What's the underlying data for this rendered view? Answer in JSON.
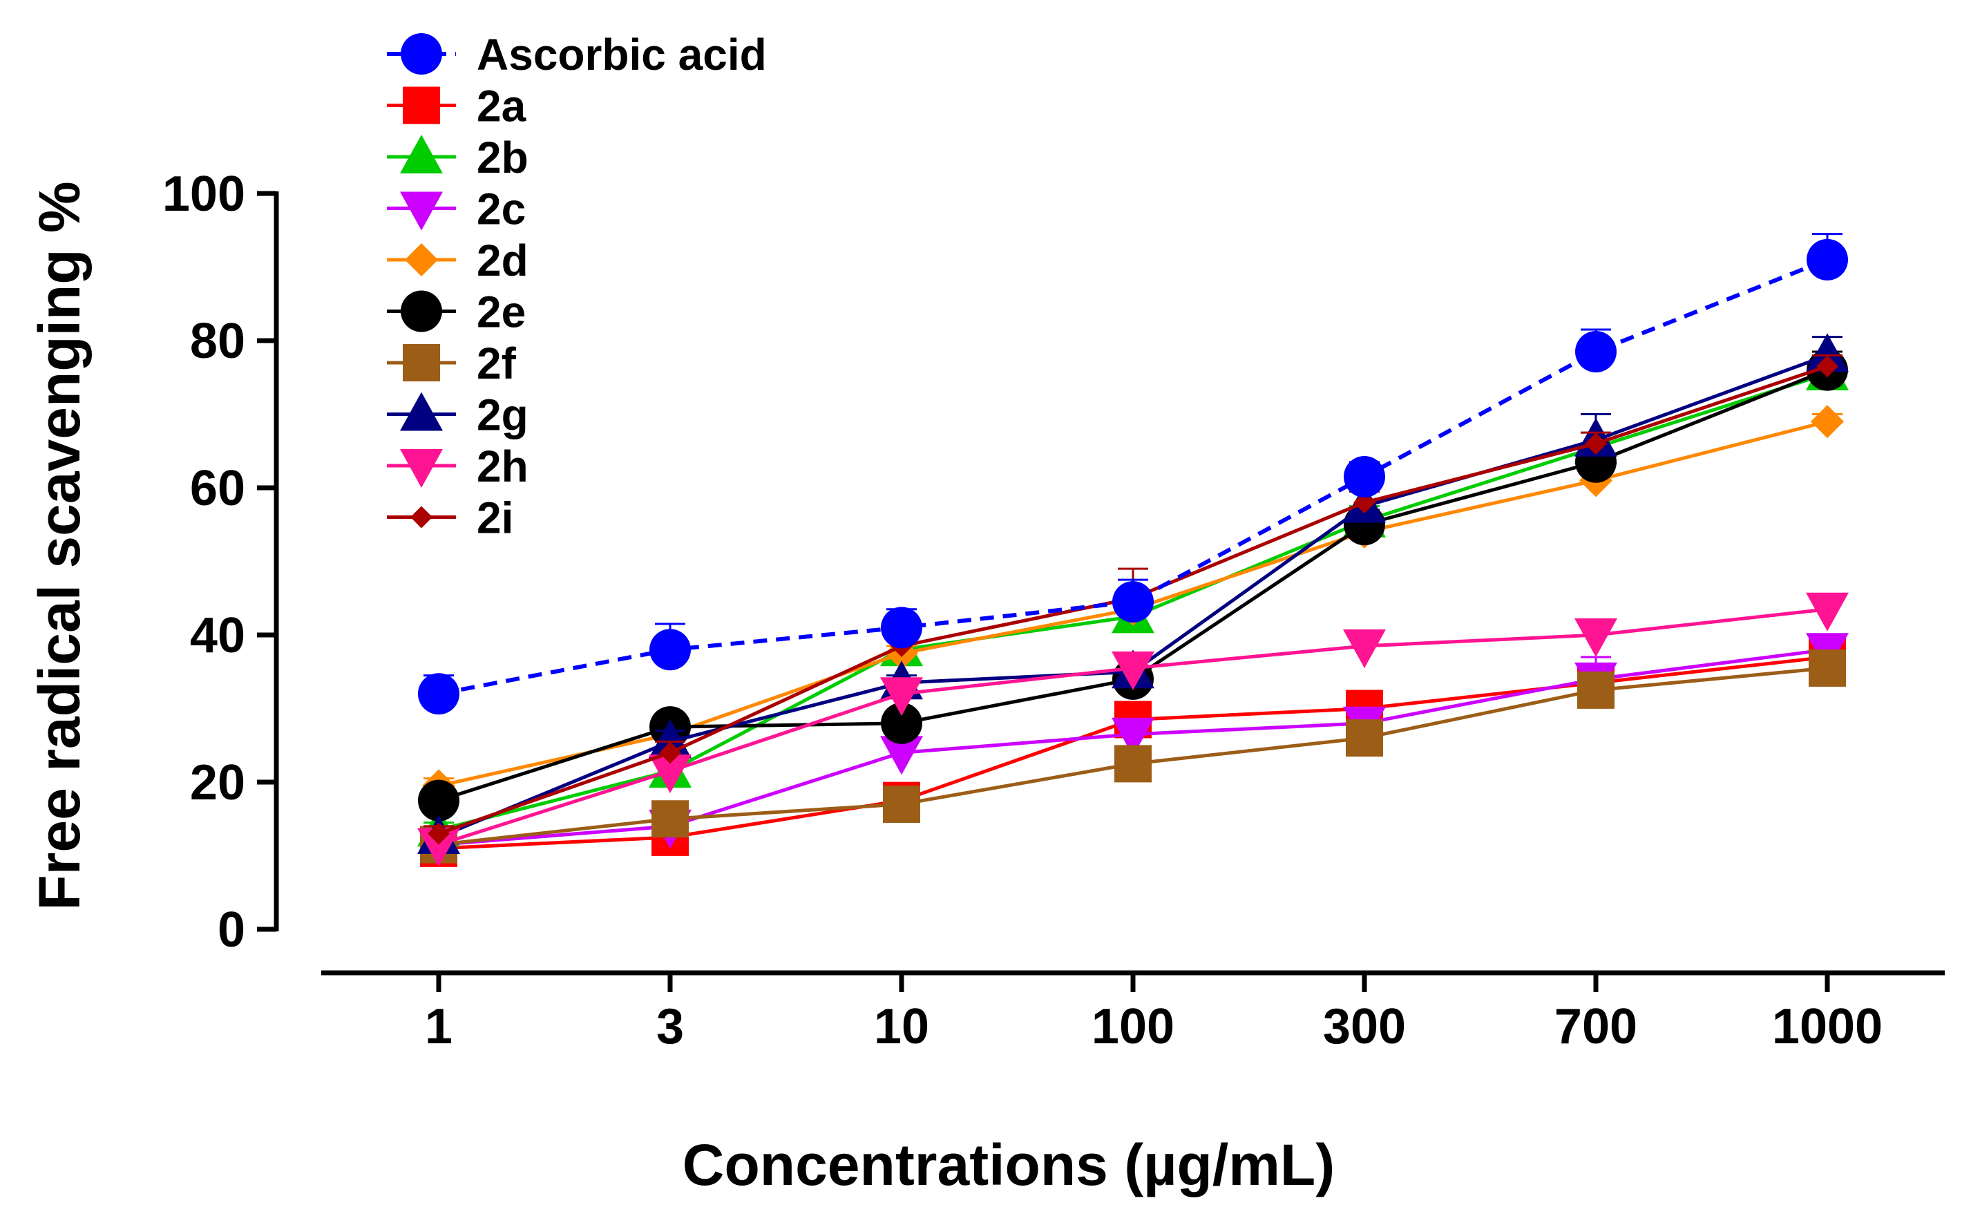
{
  "chart_data": {
    "type": "line",
    "title": "",
    "xlabel": "Concentrations (µg/mL)",
    "ylabel": "Free radical scavenging %",
    "categories": [
      "1",
      "3",
      "10",
      "100",
      "300",
      "700",
      "1000"
    ],
    "ylim": [
      0,
      100
    ],
    "yticks": [
      "0",
      "20",
      "40",
      "60",
      "80",
      "100"
    ],
    "legend_position": "top-left",
    "series": [
      {
        "name": "Ascorbic acid",
        "color": "#0000ff",
        "marker": "circle",
        "dashed": true,
        "values": [
          32,
          38,
          41,
          44.5,
          61.5,
          78.5,
          91
        ],
        "errors": [
          2.5,
          3.5,
          2.5,
          3,
          2,
          3,
          3.5
        ]
      },
      {
        "name": "2a",
        "color": "#ff0000",
        "marker": "square",
        "dashed": false,
        "values": [
          11,
          12.5,
          17.5,
          28.5,
          30,
          33.5,
          37
        ],
        "errors": [
          1,
          1,
          2,
          1.5,
          1,
          1,
          1
        ]
      },
      {
        "name": "2b",
        "color": "#00cc00",
        "marker": "triangle-up",
        "dashed": false,
        "values": [
          13.5,
          21.5,
          38,
          42.5,
          55.5,
          65.5,
          75.5
        ],
        "errors": [
          1,
          1.5,
          1.5,
          2,
          2,
          2,
          2
        ]
      },
      {
        "name": "2c",
        "color": "#cc00ff",
        "marker": "triangle-down",
        "dashed": false,
        "values": [
          11.5,
          14,
          24,
          26.5,
          28,
          34,
          38
        ],
        "errors": [
          1,
          1,
          1,
          1,
          1,
          3,
          2
        ]
      },
      {
        "name": "2d",
        "color": "#ff8800",
        "marker": "diamond",
        "dashed": false,
        "values": [
          19.5,
          26.5,
          37.5,
          43.5,
          54,
          61,
          69
        ],
        "errors": [
          1,
          1.5,
          1,
          1.5,
          1.5,
          1.5,
          1
        ]
      },
      {
        "name": "2e",
        "color": "#000000",
        "marker": "circle",
        "dashed": false,
        "values": [
          17.5,
          27.5,
          28,
          34,
          55,
          63.5,
          76
        ],
        "errors": [
          1,
          1.5,
          1,
          1.5,
          2,
          2,
          2.5
        ]
      },
      {
        "name": "2f",
        "color": "#9c5d17",
        "marker": "square",
        "dashed": false,
        "values": [
          11.5,
          15,
          17,
          22.5,
          26,
          32.5,
          35.5
        ],
        "errors": [
          1,
          1,
          1,
          1,
          1,
          1,
          1
        ]
      },
      {
        "name": "2g",
        "color": "#000080",
        "marker": "triangle-up",
        "dashed": false,
        "values": [
          12.5,
          25.5,
          33.5,
          35,
          57.5,
          66.5,
          78
        ],
        "errors": [
          1,
          1.5,
          1,
          1.5,
          2,
          3.5,
          2.5
        ]
      },
      {
        "name": "2h",
        "color": "#ff1493",
        "marker": "triangle-down",
        "dashed": false,
        "values": [
          11.5,
          21.5,
          32,
          35.5,
          38.5,
          40,
          43.5
        ],
        "errors": [
          1,
          1,
          1,
          1,
          1,
          1,
          1
        ]
      },
      {
        "name": "2i",
        "color": "#aa0000",
        "marker": "diamond-small",
        "dashed": false,
        "values": [
          13,
          24,
          38.5,
          45,
          58,
          66,
          76.5
        ],
        "errors": [
          1,
          1.5,
          1.5,
          4,
          1.5,
          1.5,
          1.5
        ]
      }
    ]
  }
}
